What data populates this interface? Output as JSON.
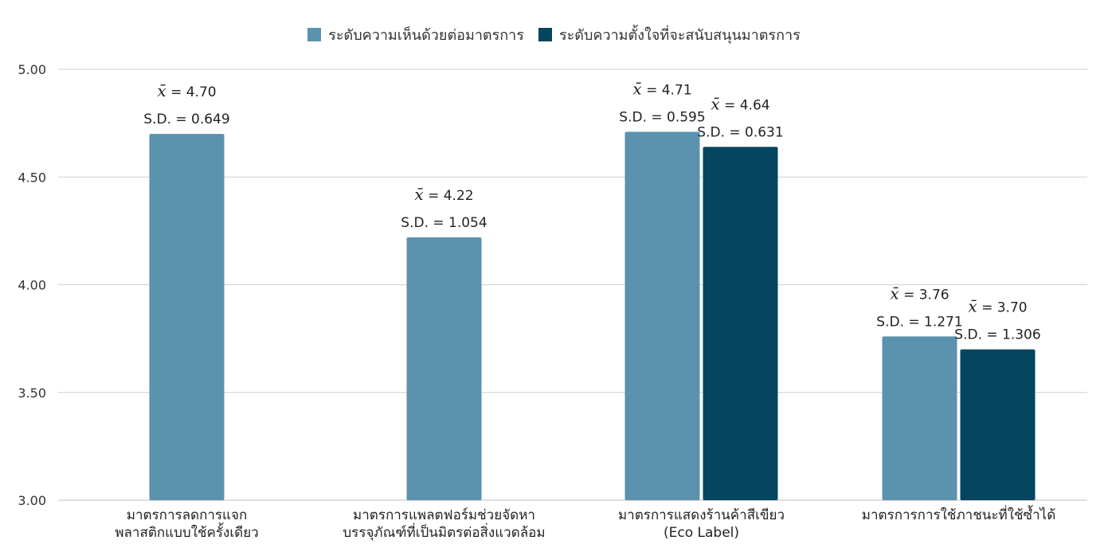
{
  "chart_data": {
    "type": "bar",
    "title": "",
    "xlabel": "",
    "ylabel": "",
    "ylim": [
      3.0,
      5.0
    ],
    "yticks": [
      "5.00",
      "4.50",
      "4.00",
      "3.50",
      "3.00"
    ],
    "yticks_values": [
      5.0,
      4.5,
      4.0,
      3.5,
      3.0
    ],
    "grid": true,
    "legend_position": "top-center",
    "categories": [
      [
        "มาตรการลดการแจก",
        "พลาสติกแบบใช้ครั้งเดียว"
      ],
      [
        "มาตรการแพลตฟอร์มช่วยจัดหา",
        "บรรจุภัณฑ์ที่เป็นมิตรต่อสิ่งแวดล้อม"
      ],
      [
        "มาตรการแสดงร้านค้าสีเขียว",
        "(Eco Label)"
      ],
      [
        "มาตรการการใช้ภาชนะที่ใช้ซ้ำได้"
      ]
    ],
    "series": [
      {
        "name": "ระดับความเห็นด้วยต่อมาตรการ",
        "color": "#5b92ae",
        "values": [
          4.7,
          4.22,
          4.71,
          3.76
        ],
        "mean_labels": [
          "4.70",
          "4.22",
          "4.71",
          "3.76"
        ],
        "sd_labels": [
          "S.D. = 0.649",
          "S.D. = 1.054",
          "S.D. = 0.595",
          "S.D. = 1.271"
        ]
      },
      {
        "name": "ระดับความตั้งใจที่จะสนับสนุนมาตรการ",
        "color": "#054560",
        "values": [
          null,
          null,
          4.64,
          3.7
        ],
        "mean_labels": [
          null,
          null,
          "4.64",
          "3.70"
        ],
        "sd_labels": [
          null,
          null,
          "S.D. = 0.631",
          "S.D. = 1.306"
        ]
      }
    ],
    "mean_symbol": "x̄",
    "mean_prefix": " = "
  }
}
